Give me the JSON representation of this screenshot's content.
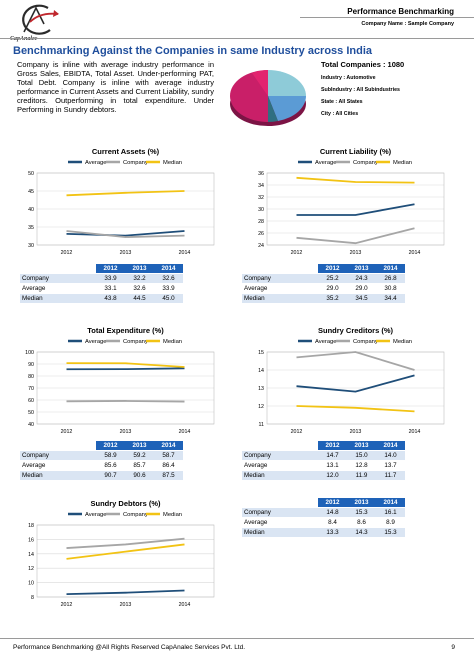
{
  "header": {
    "logo_text": "CapAnalec",
    "report_title": "Performance Benchmarking",
    "company_name": "Company Name : Sample Company"
  },
  "section_title": "Benchmarking Against the Companies in same Industry across India",
  "summary": "Company is inline with average industry performance in Gross Sales, EBIDTA, Total Asset. Under-performing PAT, Total Debt. Company is inline with average industry performance in Current Assets and Current Liability, sundry creditors. Outperforming in total expenditure.   Under Performing in Sundry debtors.",
  "totals": {
    "total_companies": "Total Companies : 1080",
    "industry": "Industry : Automotive",
    "subindustry": "SubIndustry : All Subindustries",
    "state": "State : All States",
    "city": "City : All Cities"
  },
  "pie_chart": {
    "colors": [
      "#5b9bd5",
      "#8ecbd8",
      "#2f6f80",
      "#b21f6a",
      "#e2246f"
    ]
  },
  "legend_labels": [
    "Average",
    "Company",
    "Median"
  ],
  "colors": {
    "average": "#1f4e79",
    "company": "#a6a6a6",
    "median": "#f2c314",
    "table_header": "#1e62b8",
    "title": "#1f4e9c"
  },
  "years": [
    "2012",
    "2013",
    "2014"
  ],
  "row_labels": [
    "Company",
    "Average",
    "Median"
  ],
  "chart_data": [
    {
      "type": "line",
      "title": "Current Assets (%)",
      "categories": [
        "2012",
        "2013",
        "2014"
      ],
      "yticks": [
        "30",
        "35",
        "40",
        "45",
        "50"
      ],
      "ylim": [
        30,
        50
      ],
      "grid": true,
      "legend": "top",
      "series": [
        {
          "name": "Average",
          "values": [
            33.1,
            32.6,
            33.9
          ]
        },
        {
          "name": "Company",
          "values": [
            33.9,
            32.2,
            32.6
          ]
        },
        {
          "name": "Median",
          "values": [
            43.8,
            44.5,
            45.0
          ]
        }
      ],
      "table": [
        [
          "33.9",
          "32.2",
          "32.6"
        ],
        [
          "33.1",
          "32.6",
          "33.9"
        ],
        [
          "43.8",
          "44.5",
          "45.0"
        ]
      ]
    },
    {
      "type": "line",
      "title": "Current Liability (%)",
      "categories": [
        "2012",
        "2013",
        "2014"
      ],
      "yticks": [
        "24",
        "26",
        "28",
        "30",
        "32",
        "34",
        "36"
      ],
      "ylim": [
        24,
        36
      ],
      "grid": true,
      "legend": "top",
      "series": [
        {
          "name": "Average",
          "values": [
            29.0,
            29.0,
            30.8
          ]
        },
        {
          "name": "Company",
          "values": [
            25.2,
            24.3,
            26.8
          ]
        },
        {
          "name": "Median",
          "values": [
            35.2,
            34.5,
            34.4
          ]
        }
      ],
      "table": [
        [
          "25.2",
          "24.3",
          "26.8"
        ],
        [
          "29.0",
          "29.0",
          "30.8"
        ],
        [
          "35.2",
          "34.5",
          "34.4"
        ]
      ]
    },
    {
      "type": "line",
      "title": "Total Expenditure (%)",
      "categories": [
        "2012",
        "2013",
        "2014"
      ],
      "yticks": [
        "40",
        "50",
        "60",
        "70",
        "80",
        "90",
        "100"
      ],
      "ylim": [
        40,
        100
      ],
      "grid": true,
      "legend": "top",
      "series": [
        {
          "name": "Average",
          "values": [
            85.6,
            85.7,
            86.4
          ]
        },
        {
          "name": "Company",
          "values": [
            58.9,
            59.2,
            58.7
          ]
        },
        {
          "name": "Median",
          "values": [
            90.7,
            90.6,
            87.5
          ]
        }
      ],
      "table": [
        [
          "58.9",
          "59.2",
          "58.7"
        ],
        [
          "85.6",
          "85.7",
          "86.4"
        ],
        [
          "90.7",
          "90.6",
          "87.5"
        ]
      ]
    },
    {
      "type": "line",
      "title": "Sundry Creditors (%)",
      "categories": [
        "2012",
        "2013",
        "2014"
      ],
      "yticks": [
        "11",
        "12",
        "13",
        "14",
        "15"
      ],
      "ylim": [
        11,
        15
      ],
      "grid": true,
      "legend": "top",
      "series": [
        {
          "name": "Average",
          "values": [
            13.1,
            12.8,
            13.7
          ]
        },
        {
          "name": "Company",
          "values": [
            14.7,
            15.0,
            14.0
          ]
        },
        {
          "name": "Median",
          "values": [
            12.0,
            11.9,
            11.7
          ]
        }
      ],
      "table": [
        [
          "14.7",
          "15.0",
          "14.0"
        ],
        [
          "13.1",
          "12.8",
          "13.7"
        ],
        [
          "12.0",
          "11.9",
          "11.7"
        ]
      ]
    },
    {
      "type": "line",
      "title": "Sundry Debtors (%)",
      "categories": [
        "2012",
        "2013",
        "2014"
      ],
      "yticks": [
        "8",
        "10",
        "12",
        "14",
        "16",
        "18"
      ],
      "ylim": [
        8,
        18
      ],
      "grid": true,
      "legend": "top",
      "series": [
        {
          "name": "Average",
          "values": [
            8.4,
            8.6,
            8.9
          ]
        },
        {
          "name": "Company",
          "values": [
            14.8,
            15.3,
            16.1
          ]
        },
        {
          "name": "Median",
          "values": [
            13.3,
            14.3,
            15.3
          ]
        }
      ],
      "table": [
        [
          "14.8",
          "15.3",
          "16.1"
        ],
        [
          "8.4",
          "8.6",
          "8.9"
        ],
        [
          "13.3",
          "14.3",
          "15.3"
        ]
      ]
    }
  ],
  "footer": {
    "text": "Performance Benchmarking @All Rights Reserved CapAnalec Services Pvt. Ltd.",
    "page": "9"
  }
}
